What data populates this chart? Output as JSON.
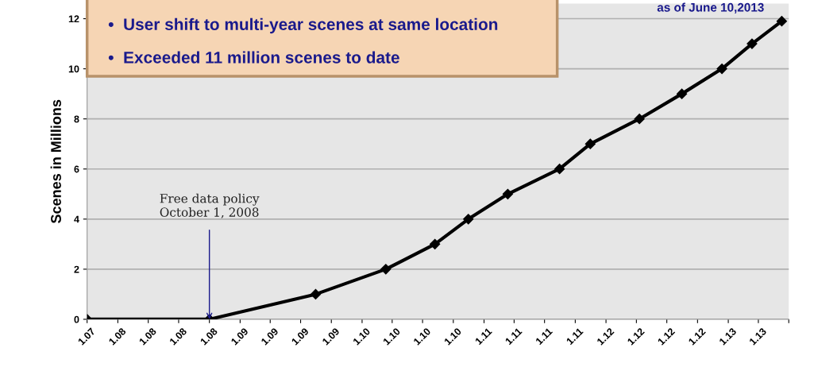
{
  "chart_data": {
    "type": "line",
    "ylabel": "Scenes in Millions",
    "x": [
      "2007-10-01",
      "2008-10-01",
      "2009-08-15",
      "2010-03-13",
      "2010-08-07",
      "2010-11-15",
      "2011-03-13",
      "2011-08-15",
      "2011-11-15",
      "2012-04-10",
      "2012-08-15",
      "2012-12-13",
      "2013-03-13",
      "2013-06-10"
    ],
    "series": [
      {
        "color": "#000000",
        "values": [
          0,
          0,
          1,
          2,
          3,
          4,
          5,
          6,
          7,
          8,
          9,
          10,
          11,
          11.9
        ]
      }
    ],
    "xlim": [
      "2007-10-01",
      "2013-07-01"
    ],
    "xticks": [
      {
        "value": "2007-10-01",
        "label": "1.07"
      },
      {
        "value": "2008-01-01",
        "label": "1.08"
      },
      {
        "value": "2008-04-01",
        "label": "1.08"
      },
      {
        "value": "2008-07-01",
        "label": "1.08"
      },
      {
        "value": "2008-10-01",
        "label": "1.08"
      },
      {
        "value": "2009-01-01",
        "label": "1.09"
      },
      {
        "value": "2009-04-01",
        "label": "1.09"
      },
      {
        "value": "2009-07-01",
        "label": "1.09"
      },
      {
        "value": "2009-10-01",
        "label": "1.09"
      },
      {
        "value": "2010-01-01",
        "label": "1.10"
      },
      {
        "value": "2010-04-01",
        "label": "1.10"
      },
      {
        "value": "2010-07-01",
        "label": "1.10"
      },
      {
        "value": "2010-10-01",
        "label": "1.10"
      },
      {
        "value": "2011-01-01",
        "label": "1.11"
      },
      {
        "value": "2011-04-01",
        "label": "1.11"
      },
      {
        "value": "2011-07-01",
        "label": "1.11"
      },
      {
        "value": "2011-10-01",
        "label": "1.11"
      },
      {
        "value": "2012-01-01",
        "label": "1.12"
      },
      {
        "value": "2012-04-01",
        "label": "1.12"
      },
      {
        "value": "2012-07-01",
        "label": "1.12"
      },
      {
        "value": "2012-10-01",
        "label": "1.12"
      },
      {
        "value": "2013-01-01",
        "label": "1.13"
      },
      {
        "value": "2013-04-01",
        "label": "1.13"
      },
      {
        "value": "2013-07-01",
        "label": null
      }
    ],
    "ylim": [
      0,
      12.6
    ],
    "yticks": [
      0,
      2,
      4,
      6,
      8,
      10,
      12
    ],
    "grid": "y",
    "marker": "diamond",
    "line_style": "solid",
    "annotations": [
      "•  User shift to multi-year scenes at same location",
      "•  Exceeded 11 million scenes to date",
      "as of June 10,2013",
      {
        "text": "Free data policy\nOctober 1, 2008",
        "x": "2008-10-01",
        "y": 0
      }
    ]
  }
}
